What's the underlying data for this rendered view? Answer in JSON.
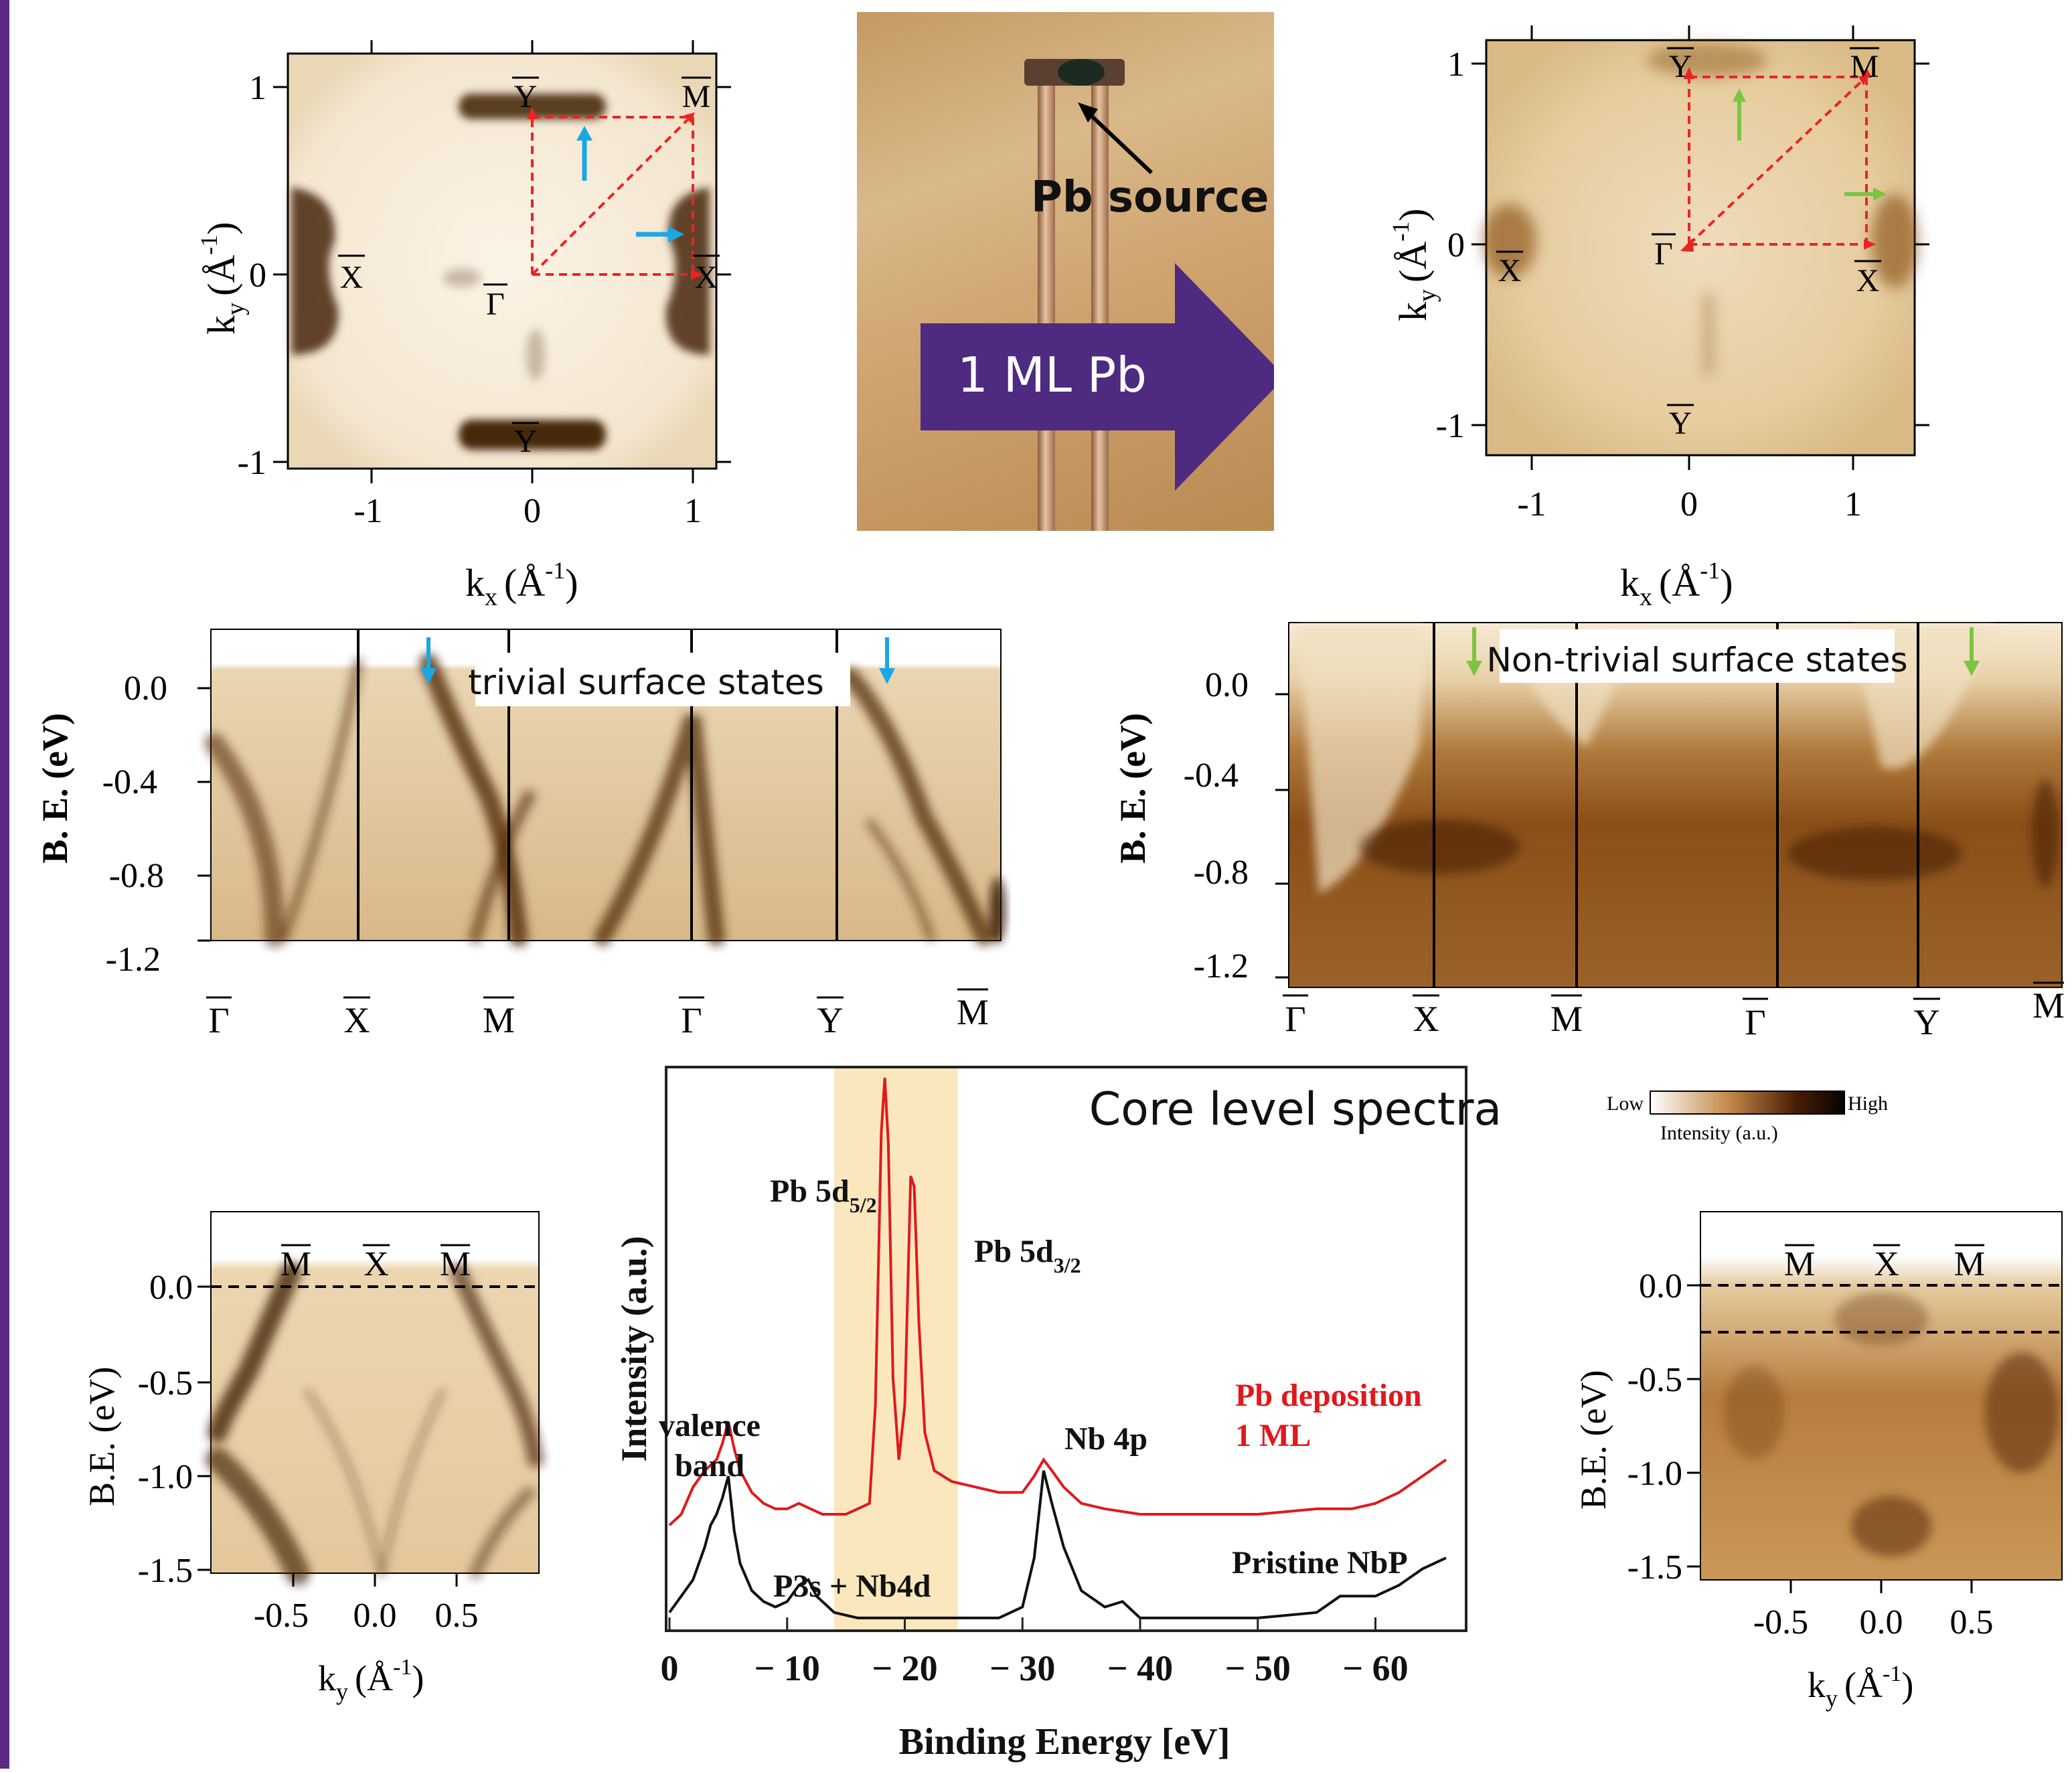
{
  "fs_left": {
    "y_ticks": [
      "1",
      "0",
      "-1"
    ],
    "x_ticks": [
      "-1",
      "0",
      "1"
    ],
    "xlabel_main": "k",
    "xlabel_sub": "x",
    "xlabel_unit": "(Å",
    "xlabel_sup": "-1",
    "xlabel_close": ")",
    "ylabel_main": "k",
    "ylabel_sub": "y",
    "ylabel_unit": "(Å",
    "ylabel_sup": "-1",
    "ylabel_close": ")",
    "points": {
      "Y_top": "Y",
      "M": "M",
      "X_left": "X",
      "Gamma": "Γ",
      "X_right": "X",
      "Y_bottom": "Y"
    }
  },
  "photo": {
    "source_label": "Pb source",
    "arrow_label": "1 ML Pb"
  },
  "fs_right": {
    "y_ticks": [
      "1",
      "0",
      "-1"
    ],
    "x_ticks": [
      "-1",
      "0",
      "1"
    ],
    "xlabel_main": "k",
    "xlabel_sub": "x",
    "xlabel_unit": "(Å",
    "xlabel_sup": "-1",
    "xlabel_close": ")",
    "ylabel_main": "k",
    "ylabel_sub": "y",
    "ylabel_unit": "(Å",
    "ylabel_sup": "-1",
    "ylabel_close": ")",
    "points": {
      "Y_top": "Y",
      "M": "M",
      "X_left": "X",
      "Gamma": "Γ",
      "X_right": "X",
      "Y_bottom": "Y"
    }
  },
  "band_left": {
    "annotation": "trivial surface states",
    "ylabel": "B. E. (eV)",
    "y_ticks": [
      "0.0",
      "-0.4",
      "-0.8",
      "-1.2"
    ],
    "path_points": [
      "Γ",
      "X",
      "M",
      "Γ",
      "Y",
      "M"
    ]
  },
  "band_right": {
    "annotation": "Non-trivial surface states",
    "ylabel": "B. E. (eV)",
    "y_ticks": [
      "0.0",
      "-0.4",
      "-0.8",
      "-1.2"
    ],
    "path_points": [
      "Γ",
      "X",
      "M",
      "Γ",
      "Y",
      "M"
    ]
  },
  "cut_left": {
    "top_labels": [
      "M",
      "X",
      "M"
    ],
    "y_ticks": [
      "0.0",
      "-0.5",
      "-1.0",
      "-1.5"
    ],
    "x_ticks": [
      "-0.5",
      "0.0",
      "0.5"
    ],
    "ylabel": "B.E. (eV)",
    "xlabel_main": "k",
    "xlabel_sub": "y",
    "xlabel_unit": "(Å",
    "xlabel_sup": "-1",
    "xlabel_close": ")"
  },
  "cut_right": {
    "top_labels": [
      "M",
      "X",
      "M"
    ],
    "y_ticks": [
      "0.0",
      "-0.5",
      "-1.0",
      "-1.5"
    ],
    "x_ticks": [
      "-0.5",
      "0.0",
      "0.5"
    ],
    "ylabel": "B.E. (eV)",
    "xlabel_main": "k",
    "xlabel_sub": "y",
    "xlabel_unit": "(Å",
    "xlabel_sup": "-1",
    "xlabel_close": ")"
  },
  "colorbar": {
    "low": "Low",
    "high": "High",
    "label": "Intensity (a.u.)"
  },
  "chart_data": {
    "type": "line",
    "title": "Core level spectra",
    "xlabel": "Binding Energy [eV]",
    "ylabel": "Intensity (a.u.)",
    "x_ticks": [
      "0",
      "10",
      "20",
      "30",
      "40",
      "50",
      "60"
    ],
    "x_tick_prefixes": [
      "",
      "−",
      "−",
      "−",
      "−",
      "−",
      "−"
    ],
    "xlim": [
      0,
      66
    ],
    "ylim": [
      0,
      100
    ],
    "highlight_band": [
      14,
      24.5
    ],
    "series": [
      {
        "name": "Pb deposition 1 ML",
        "color": "#e0191c",
        "x": [
          0,
          1,
          2,
          3,
          4,
          4.5,
          5,
          5.5,
          6,
          7,
          8,
          9,
          10,
          11,
          12,
          13,
          14,
          15,
          16,
          17,
          17.5,
          18,
          18.3,
          18.6,
          19,
          19.5,
          20,
          20.5,
          20.8,
          21.2,
          21.7,
          22.5,
          24,
          26,
          28,
          30,
          31,
          31.8,
          32.5,
          33.5,
          35,
          37,
          40,
          45,
          50,
          55,
          58,
          60,
          62,
          64,
          66
        ],
        "y": [
          18,
          20,
          25,
          28,
          30,
          33,
          37,
          32,
          28,
          24,
          22,
          21,
          21,
          22,
          21,
          20,
          20,
          20,
          21,
          22,
          40,
          90,
          100,
          88,
          45,
          30,
          40,
          82,
          80,
          55,
          35,
          28,
          26,
          25,
          24,
          24,
          27,
          30,
          28,
          25,
          22,
          21,
          20,
          20,
          20,
          21,
          21,
          22,
          24,
          27,
          30
        ]
      },
      {
        "name": "Pristine NbP",
        "color": "#111111",
        "x": [
          0,
          1,
          2,
          3,
          3.5,
          4,
          4.5,
          5,
          5.5,
          6,
          7,
          8,
          9,
          10,
          11,
          11.8,
          12.5,
          14,
          16,
          20,
          25,
          28,
          30,
          31,
          31.8,
          32.5,
          33.5,
          35,
          37,
          38.5,
          40,
          45,
          50,
          55,
          57,
          60,
          62,
          64,
          66
        ],
        "y": [
          2,
          5,
          8,
          14,
          18,
          20,
          23,
          27,
          17,
          11,
          6,
          4,
          3,
          4,
          7,
          8,
          5,
          2,
          1,
          1,
          1,
          1,
          3,
          12,
          28,
          22,
          14,
          6,
          3,
          4,
          1,
          1,
          1,
          2,
          5,
          5,
          7,
          10,
          12
        ]
      }
    ],
    "annotations": {
      "pb_5d52_main": "Pb 5d",
      "pb_5d52_sub": "5/2",
      "pb_5d32_main": "Pb 5d",
      "pb_5d32_sub": "3/2",
      "valence_band_line1": "valence",
      "valence_band_line2": "band",
      "p3s_nb4d": "P3s + Nb4d",
      "nb_4p": "Nb 4p",
      "pb_dep_line1": "Pb deposition",
      "pb_dep_line2": "1 ML",
      "pristine": "Pristine NbP"
    }
  },
  "colors": {
    "purple": "#4e2a80",
    "red_arrow": "#ee2222",
    "blue_arrow": "#1ba7e4",
    "green_arrow": "#7cc543",
    "arpes_dark": "#3a1a06",
    "highlight": "#fbe7bd"
  }
}
